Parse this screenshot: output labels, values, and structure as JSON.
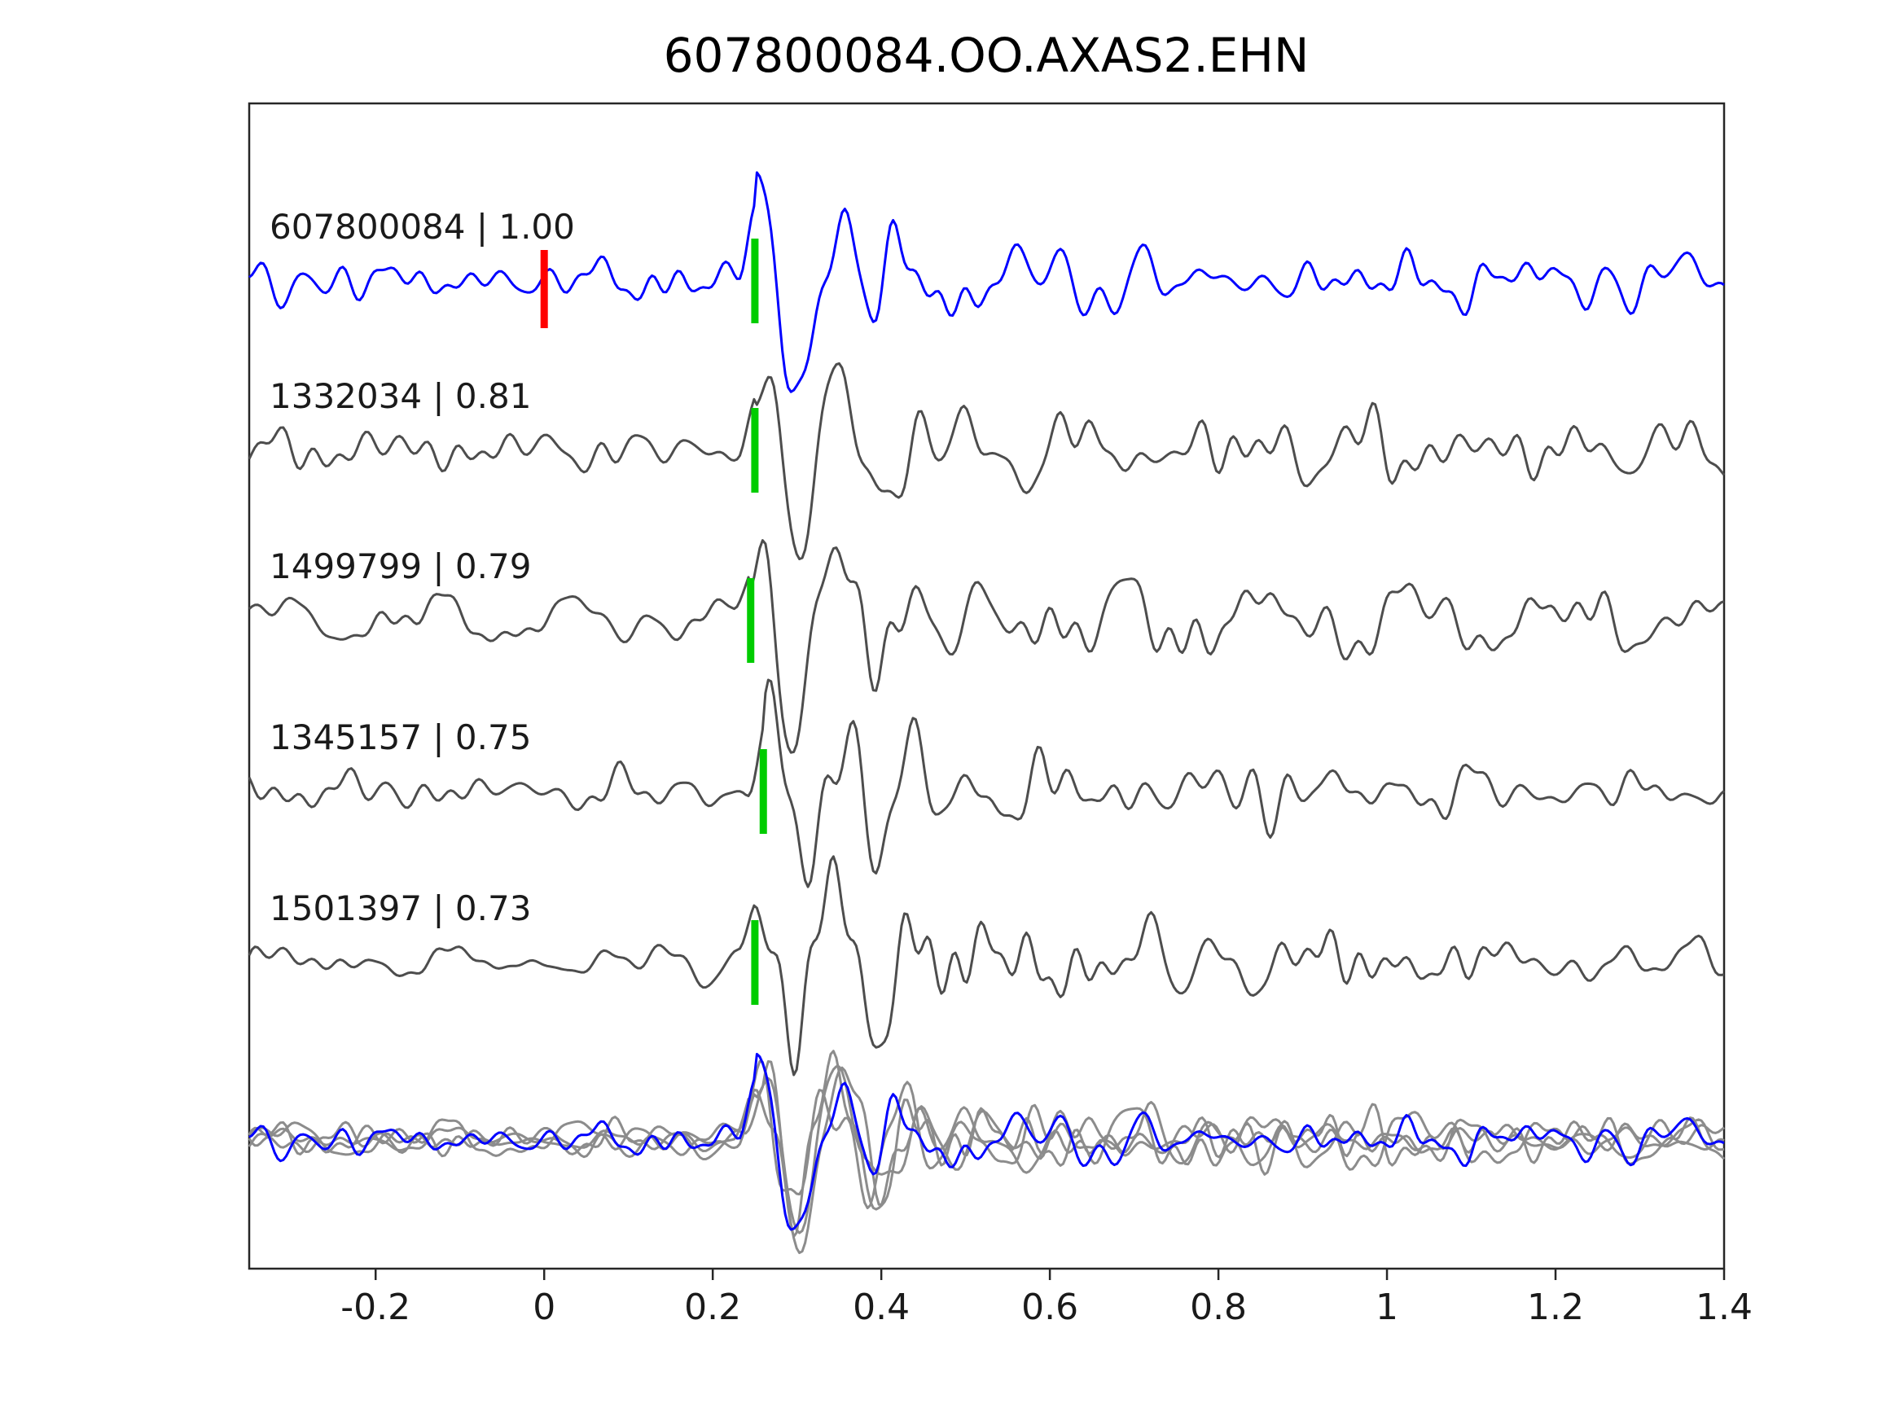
{
  "chart_data": {
    "type": "line",
    "title": "607800084.OO.AXAS2.EHN",
    "xlabel": "",
    "ylabel": "",
    "xlim": [
      -0.35,
      1.4
    ],
    "grid": false,
    "legend_position": "none",
    "x_ticks": [
      {
        "label": "-0.2",
        "value": -0.2
      },
      {
        "label": "0",
        "value": 0.0
      },
      {
        "label": "0.2",
        "value": 0.2
      },
      {
        "label": "0.4",
        "value": 0.4
      },
      {
        "label": "0.6",
        "value": 0.6
      },
      {
        "label": "0.8",
        "value": 0.8
      },
      {
        "label": "1",
        "value": 1.0
      },
      {
        "label": "1.2",
        "value": 1.2
      },
      {
        "label": "1.4",
        "value": 1.4
      }
    ],
    "series": [
      {
        "label": "607800084 | 1.00",
        "event_id": "607800084",
        "correlation": 1.0,
        "color": "#0000ff",
        "green_pick": 0.25,
        "red_pick": 0.0
      },
      {
        "label": "1332034 | 0.81",
        "event_id": "1332034",
        "correlation": 0.81,
        "color": "#4d4d4d",
        "green_pick": 0.25,
        "red_pick": null
      },
      {
        "label": "1499799 | 0.79",
        "event_id": "1499799",
        "correlation": 0.79,
        "color": "#4d4d4d",
        "green_pick": 0.245,
        "red_pick": null
      },
      {
        "label": "1345157 | 0.75",
        "event_id": "1345157",
        "correlation": 0.75,
        "color": "#4d4d4d",
        "green_pick": 0.26,
        "red_pick": null
      },
      {
        "label": "1501397 | 0.73",
        "event_id": "1501397",
        "correlation": 0.73,
        "color": "#4d4d4d",
        "green_pick": 0.25,
        "red_pick": null
      }
    ],
    "overlay_row": {
      "description": "all traces aligned and overlain",
      "gray_color": "#8c8c8c",
      "blue_color": "#0000ff",
      "alignment_time": 0.25
    },
    "pick_colors": {
      "green": "#00cc00",
      "red": "#ff0000"
    },
    "axis_color": "#262626",
    "text_color": "#1a1a1a"
  }
}
